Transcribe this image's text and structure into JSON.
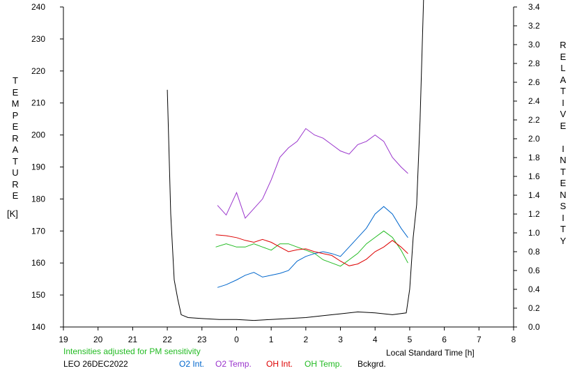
{
  "chart_data": {
    "type": "line",
    "station": "LEO 26DEC2022",
    "note": "Intensities adjusted for PM sensitivity",
    "xlabel": "Local Standard Time [h]",
    "ylabel_left": "TEMPERATURE",
    "ylabel_left_unit": "[K]",
    "ylabel_right": "RELATIVE INTENSITY",
    "x_ticks": [
      "19",
      "20",
      "21",
      "22",
      "23",
      "0",
      "1",
      "2",
      "3",
      "4",
      "5",
      "6",
      "7",
      "8"
    ],
    "x_range": [
      19,
      32
    ],
    "y_left_ticks": [
      "140",
      "150",
      "160",
      "170",
      "180",
      "190",
      "200",
      "210",
      "220",
      "230",
      "240"
    ],
    "y_left_range": [
      140,
      240
    ],
    "y_right_ticks": [
      "0.0",
      "0.2",
      "0.4",
      "0.6",
      "0.8",
      "1.0",
      "1.2",
      "1.4",
      "1.6",
      "1.8",
      "2.0",
      "2.2",
      "2.4",
      "2.6",
      "2.8",
      "3.0",
      "3.2",
      "3.4"
    ],
    "y_right_range": [
      0.0,
      3.4
    ],
    "legend": [
      {
        "label": "O2 Int.",
        "color": "#0066cc"
      },
      {
        "label": "O2 Temp.",
        "color": "#9933cc"
      },
      {
        "label": "OH Int.",
        "color": "#dd0000"
      },
      {
        "label": "OH Temp.",
        "color": "#22bb22"
      },
      {
        "label": "Bckgrd.",
        "color": "#000000"
      }
    ],
    "note_color": "#22bb22",
    "series": [
      {
        "name": "O2 Temp.",
        "axis": "left",
        "color": "#9933cc",
        "x": [
          23.45,
          23.7,
          24.0,
          24.25,
          24.5,
          24.75,
          25.0,
          25.25,
          25.5,
          25.75,
          26.0,
          26.25,
          26.5,
          26.75,
          27.0,
          27.25,
          27.5,
          27.75,
          28.0,
          28.25,
          28.5,
          28.75,
          28.95
        ],
        "y": [
          178,
          175,
          182,
          174,
          177,
          180,
          186,
          193,
          196,
          198,
          202,
          200,
          199,
          197,
          195,
          194,
          197,
          198,
          200,
          198,
          193,
          190,
          188
        ]
      },
      {
        "name": "OH Temp.",
        "axis": "left",
        "color": "#22bb22",
        "x": [
          23.4,
          23.7,
          24.0,
          24.25,
          24.5,
          24.75,
          25.0,
          25.25,
          25.5,
          25.75,
          26.0,
          26.25,
          26.5,
          26.75,
          27.0,
          27.25,
          27.5,
          27.75,
          28.0,
          28.25,
          28.5,
          28.75,
          28.95
        ],
        "y": [
          165,
          166,
          165,
          165,
          166,
          165,
          164,
          166,
          166,
          165,
          164,
          163,
          161,
          160,
          159,
          161,
          163,
          166,
          168,
          170,
          168,
          164,
          160
        ]
      },
      {
        "name": "O2 Int.",
        "axis": "right",
        "color": "#0066cc",
        "x": [
          23.45,
          23.7,
          24.0,
          24.25,
          24.5,
          24.75,
          25.0,
          25.25,
          25.5,
          25.75,
          26.0,
          26.25,
          26.5,
          26.75,
          27.0,
          27.25,
          27.5,
          27.75,
          28.0,
          28.25,
          28.5,
          28.75,
          28.95
        ],
        "y": [
          0.42,
          0.45,
          0.5,
          0.55,
          0.58,
          0.53,
          0.55,
          0.57,
          0.6,
          0.7,
          0.75,
          0.78,
          0.8,
          0.78,
          0.75,
          0.85,
          0.95,
          1.05,
          1.2,
          1.28,
          1.2,
          1.05,
          0.95
        ]
      },
      {
        "name": "OH Int.",
        "axis": "right",
        "color": "#dd0000",
        "x": [
          23.4,
          23.7,
          24.0,
          24.25,
          24.5,
          24.75,
          25.0,
          25.25,
          25.5,
          25.75,
          26.0,
          26.25,
          26.5,
          26.75,
          27.0,
          27.25,
          27.5,
          27.75,
          28.0,
          28.25,
          28.5,
          28.75,
          28.95
        ],
        "y": [
          0.98,
          0.97,
          0.95,
          0.92,
          0.9,
          0.93,
          0.9,
          0.85,
          0.8,
          0.82,
          0.83,
          0.8,
          0.78,
          0.76,
          0.7,
          0.65,
          0.67,
          0.72,
          0.8,
          0.85,
          0.92,
          0.85,
          0.78
        ]
      },
      {
        "name": "Bckgrd.",
        "axis": "right",
        "color": "#000000",
        "x": [
          22.0,
          22.1,
          22.2,
          22.25,
          22.3,
          22.4,
          22.6,
          23.0,
          23.5,
          24.0,
          24.5,
          25.0,
          25.5,
          26.0,
          26.5,
          27.0,
          27.5,
          28.0,
          28.5,
          28.9,
          29.0,
          29.1,
          29.2,
          29.3,
          29.4
        ],
        "y": [
          2.52,
          1.2,
          0.5,
          0.4,
          0.3,
          0.13,
          0.1,
          0.09,
          0.08,
          0.08,
          0.07,
          0.08,
          0.09,
          0.1,
          0.12,
          0.14,
          0.16,
          0.15,
          0.13,
          0.15,
          0.4,
          0.95,
          1.3,
          2.2,
          3.5
        ]
      }
    ]
  }
}
